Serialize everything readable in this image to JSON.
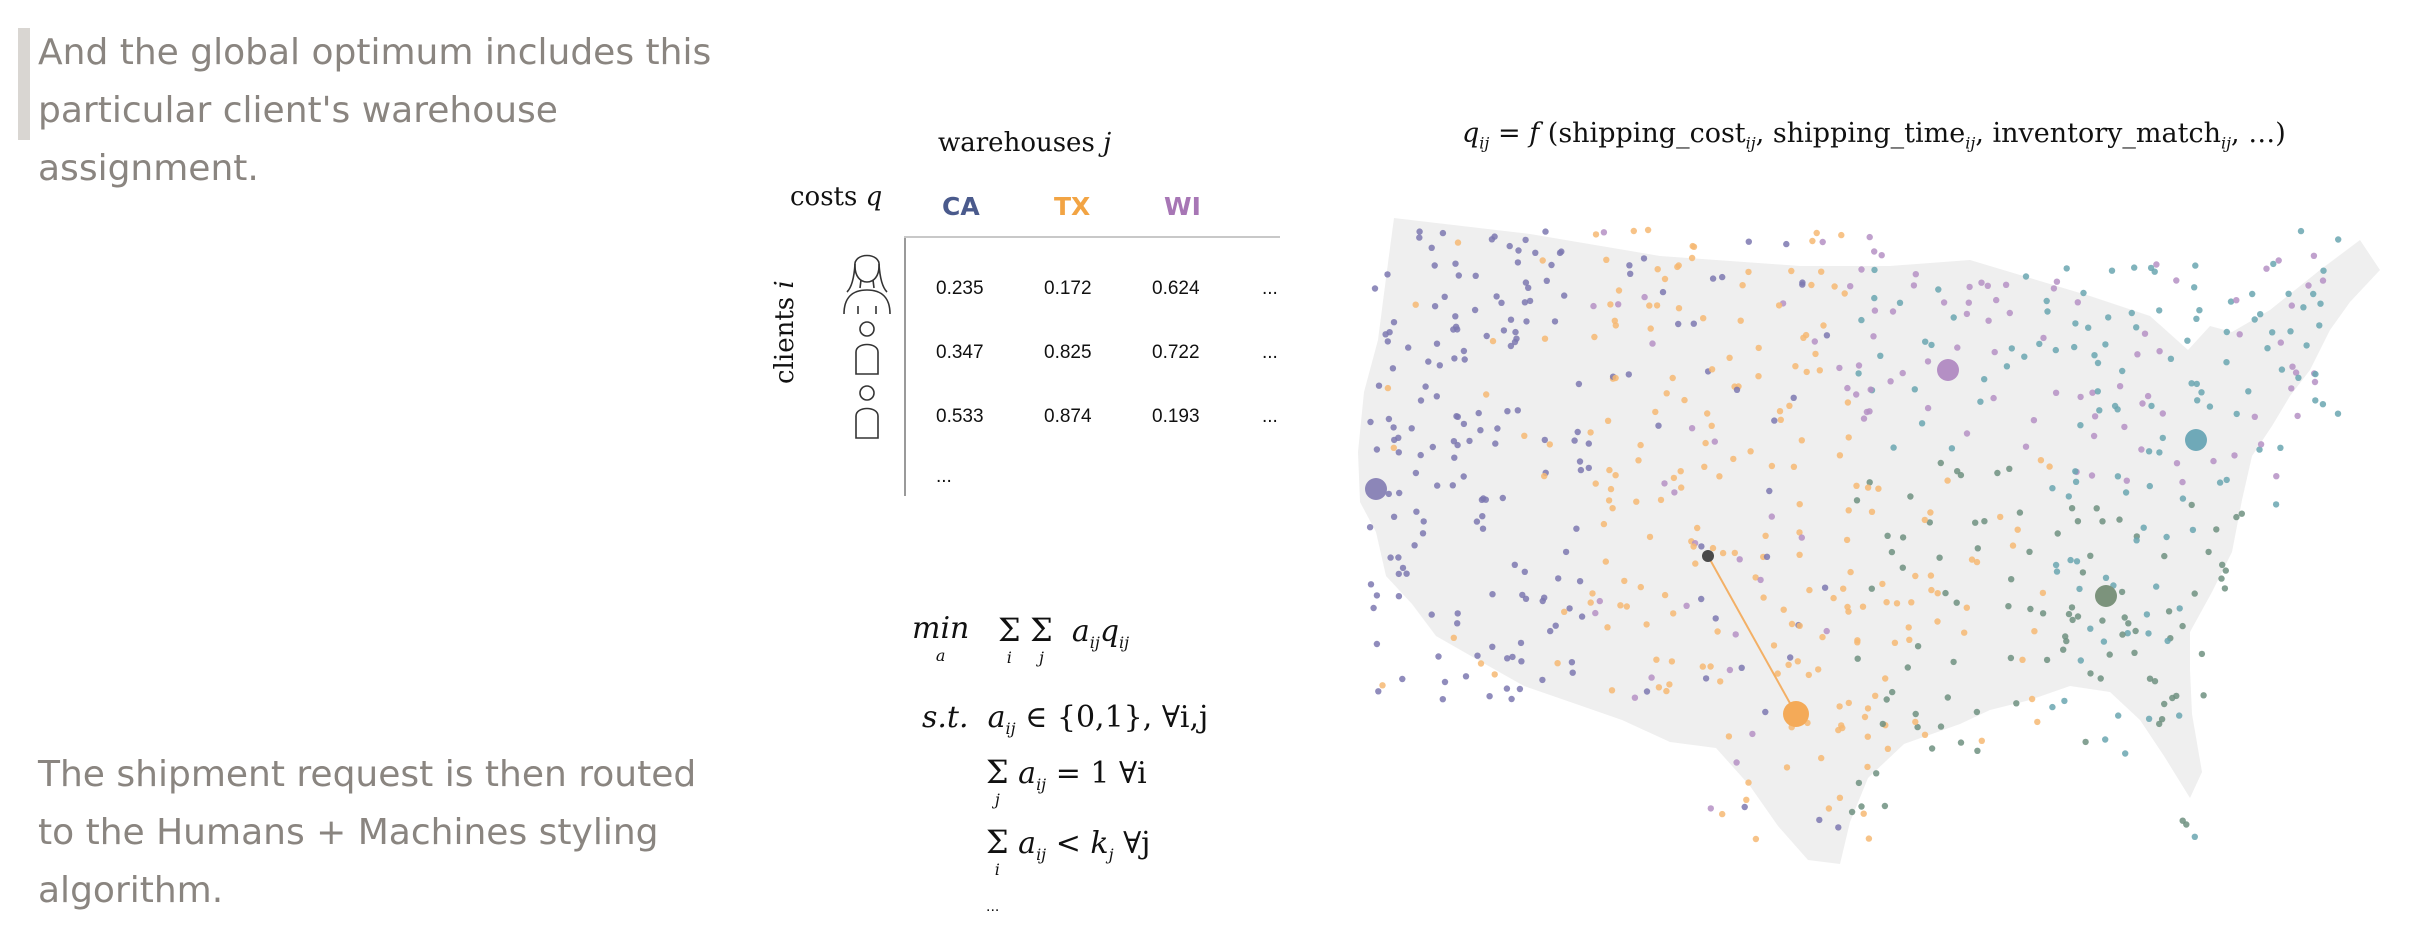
{
  "narration": {
    "top": "And the global optimum includes this particular client's warehouse assignment.",
    "bottom": "The shipment request is then routed to the Humans + Machines styling algorithm."
  },
  "cost_table": {
    "warehouses_label": "warehouses",
    "warehouses_index": "j",
    "costs_label": "costs",
    "costs_symbol": "q",
    "clients_label": "clients",
    "clients_index": "i",
    "warehouses": [
      {
        "code": "CA",
        "color": "#4a5a8c"
      },
      {
        "code": "TX",
        "color": "#f2a444"
      },
      {
        "code": "WI",
        "color": "#a776b5"
      }
    ],
    "rows": [
      [
        "0.235",
        "0.172",
        "0.624",
        "..."
      ],
      [
        "0.347",
        "0.825",
        "0.722",
        "..."
      ],
      [
        "0.533",
        "0.874",
        "0.193",
        "..."
      ]
    ],
    "row_ellipsis": "..."
  },
  "cost_formula": {
    "lhs": "q",
    "lhs_sub": "ij",
    "eq": "=",
    "f": "f",
    "args": [
      {
        "name": "shipping_cost",
        "sub": "ij"
      },
      {
        "name": "shipping_time",
        "sub": "ij"
      },
      {
        "name": "inventory_match",
        "sub": "ij"
      }
    ],
    "tail": "…)"
  },
  "optimization": {
    "min": "min",
    "min_sub": "a",
    "sum": "Σ",
    "i": "i",
    "j": "j",
    "objective_a": "a",
    "objective_q": "q",
    "sub": "ij",
    "st": "s.t.",
    "c1_rest": "∈ {0,1}, ∀i,j",
    "c2_rest": "= 1 ∀i",
    "c3_lt": "<",
    "c3_k": "k",
    "c3_ksub": "j",
    "c3_forall": "∀j",
    "ellipsis": "..."
  },
  "map": {
    "colors": {
      "ca": "#7d78b0",
      "tx": "#f6b873",
      "wi": "#b591c4",
      "ne": "#6aa6b0",
      "se": "#6f9180",
      "land": "#efefef"
    },
    "warehouses": [
      {
        "name": "CA",
        "color": "#8c86b8"
      },
      {
        "name": "TX",
        "color": "#f4aa58"
      },
      {
        "name": "WI",
        "color": "#b48fc4"
      },
      {
        "name": "PA",
        "color": "#6fa9b8"
      },
      {
        "name": "KY",
        "color": "#7c937c"
      }
    ],
    "client": {
      "color": "#4a4a4a"
    }
  }
}
